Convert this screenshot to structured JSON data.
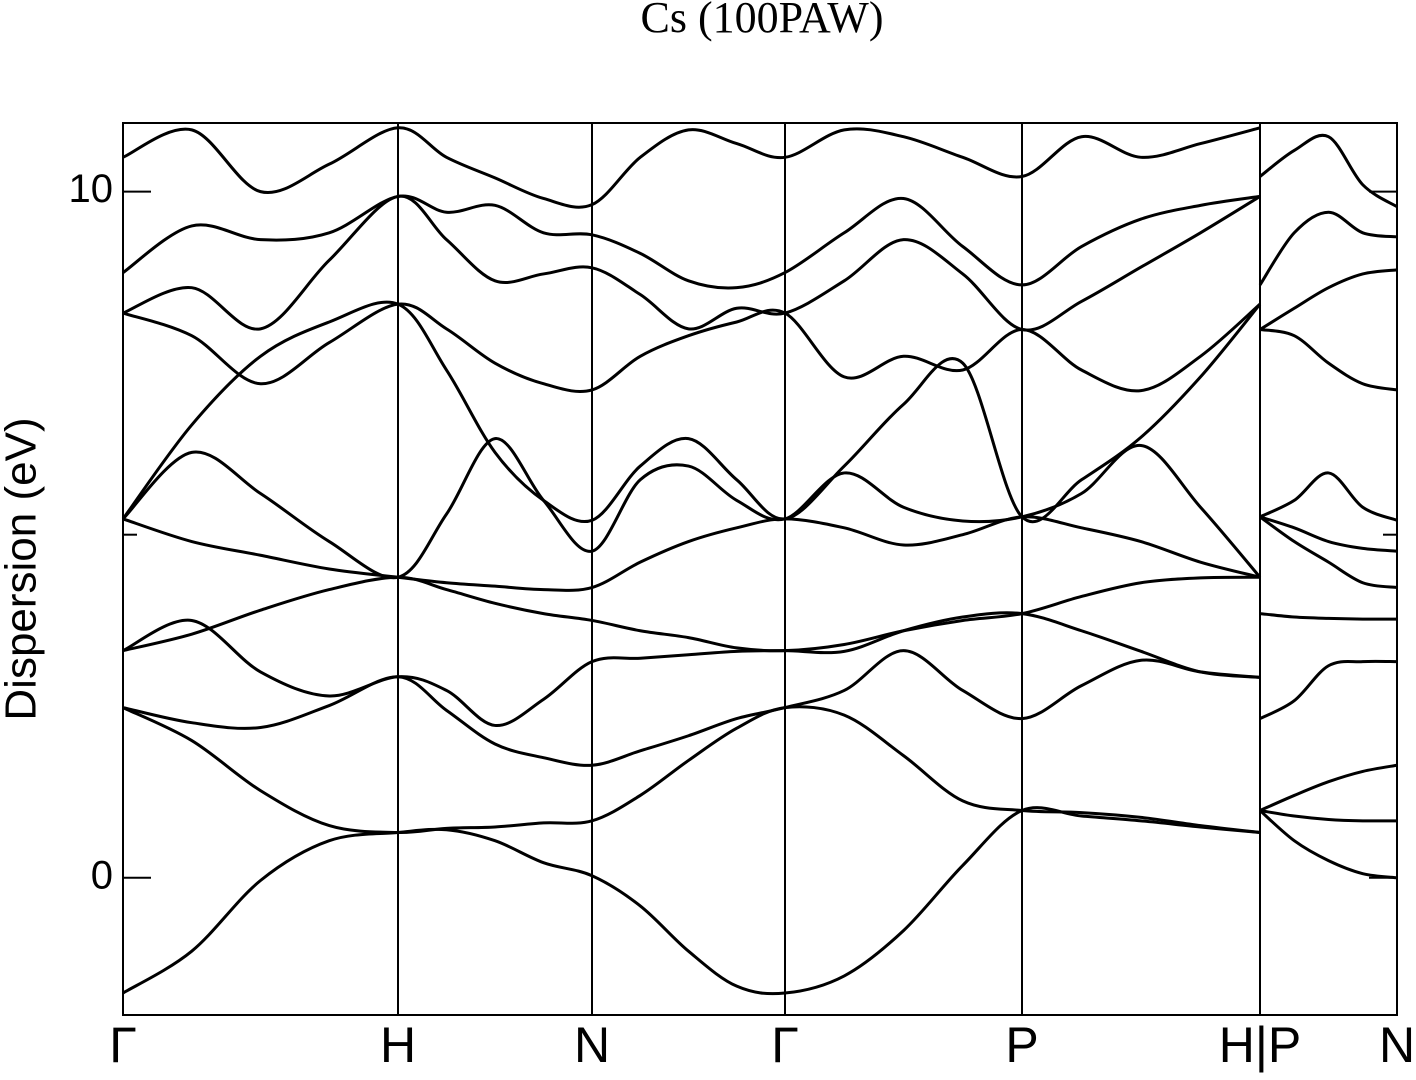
{
  "chart_data": {
    "type": "line",
    "title": "Cs (100PAW)",
    "y_label": "Dispersion (eV)",
    "color": "#000000",
    "xlim": [
      0,
      12.74
    ],
    "ylim": [
      -2,
      11
    ],
    "yticks": [
      0,
      10
    ],
    "yminor_ticks": [
      5
    ],
    "xticks": [
      {
        "value": 0,
        "label": "Γ"
      },
      {
        "value": 2.75,
        "label": "H"
      },
      {
        "value": 4.69,
        "label": "N"
      },
      {
        "value": 6.62,
        "label": "Γ"
      },
      {
        "value": 8.99,
        "label": "P"
      },
      {
        "value": 11.37,
        "label": "H|P"
      },
      {
        "value": 12.74,
        "label": "N"
      }
    ],
    "x": [
      0,
      0.6875,
      1.375,
      2.0625,
      2.75,
      3.235,
      3.72,
      4.205,
      4.69,
      5.1725,
      5.655,
      6.1375,
      6.62,
      7.2125,
      7.805,
      8.3975,
      8.99,
      9.585,
      10.18,
      10.775,
      11.37,
      11.37,
      11.7125,
      12.055,
      12.3975,
      12.74
    ],
    "series": [
      {
        "values": [
          -1.68,
          -1.07,
          -0.04,
          0.54,
          0.66,
          0.7,
          0.54,
          0.22,
          0.03,
          -0.41,
          -1.07,
          -1.58,
          -1.68,
          -1.43,
          -0.77,
          0.18,
          0.98,
          0.9,
          0.83,
          0.74,
          0.66,
          0.98,
          0.54,
          0.25,
          0.06,
          0.0
        ]
      },
      {
        "values": [
          2.48,
          2.0,
          1.27,
          0.76,
          0.66,
          0.72,
          0.74,
          0.8,
          0.83,
          1.2,
          1.71,
          2.18,
          2.48,
          2.37,
          1.78,
          1.12,
          0.98,
          0.95,
          0.88,
          0.76,
          0.66,
          0.98,
          0.9,
          0.85,
          0.83,
          0.83
        ]
      },
      {
        "values": [
          2.48,
          2.26,
          2.19,
          2.51,
          2.93,
          2.44,
          1.95,
          1.75,
          1.64,
          1.85,
          2.07,
          2.32,
          2.48,
          2.73,
          3.31,
          2.73,
          2.32,
          2.8,
          3.17,
          3.0,
          2.92,
          0.98,
          1.2,
          1.4,
          1.55,
          1.64
        ]
      },
      {
        "values": [
          3.31,
          3.75,
          3.0,
          2.65,
          2.93,
          2.73,
          2.22,
          2.6,
          3.15,
          3.2,
          3.25,
          3.3,
          3.31,
          3.3,
          3.6,
          3.8,
          3.85,
          3.6,
          3.3,
          3.0,
          2.92,
          2.32,
          2.58,
          3.09,
          3.15,
          3.15
        ]
      },
      {
        "values": [
          3.31,
          3.55,
          3.9,
          4.2,
          4.38,
          4.2,
          4.0,
          3.85,
          3.75,
          3.6,
          3.5,
          3.35,
          3.31,
          3.4,
          3.6,
          3.75,
          3.85,
          4.1,
          4.3,
          4.37,
          4.38,
          3.85,
          3.8,
          3.78,
          3.77,
          3.77
        ]
      },
      {
        "values": [
          5.23,
          4.9,
          4.7,
          4.5,
          4.38,
          4.3,
          4.25,
          4.2,
          4.23,
          4.6,
          4.9,
          5.1,
          5.23,
          5.1,
          4.85,
          5.0,
          5.26,
          5.1,
          4.9,
          4.6,
          4.38,
          5.26,
          4.9,
          4.6,
          4.3,
          4.23
        ]
      },
      {
        "values": [
          5.23,
          6.2,
          5.6,
          4.9,
          4.38,
          5.3,
          6.4,
          5.5,
          4.76,
          5.8,
          6.0,
          5.5,
          5.23,
          5.9,
          5.4,
          5.2,
          5.26,
          5.6,
          6.3,
          5.4,
          4.38,
          5.26,
          5.1,
          4.9,
          4.8,
          4.76
        ]
      },
      {
        "values": [
          5.23,
          6.6,
          7.6,
          8.1,
          8.36,
          7.4,
          6.2,
          5.5,
          5.21,
          6.0,
          6.4,
          5.8,
          5.23,
          6.0,
          6.9,
          7.5,
          5.26,
          5.8,
          6.42,
          7.3,
          8.36,
          5.26,
          5.5,
          5.9,
          5.4,
          5.21
        ]
      },
      {
        "values": [
          8.23,
          7.9,
          7.2,
          7.8,
          8.36,
          8.0,
          7.5,
          7.2,
          7.11,
          7.6,
          7.9,
          8.1,
          8.23,
          7.3,
          7.6,
          7.4,
          7.99,
          7.4,
          7.1,
          7.6,
          8.36,
          7.99,
          7.9,
          7.5,
          7.2,
          7.11
        ]
      },
      {
        "values": [
          8.23,
          8.6,
          8.0,
          9.0,
          9.93,
          9.3,
          8.7,
          8.8,
          8.89,
          8.5,
          8.0,
          8.3,
          8.23,
          8.7,
          9.3,
          8.8,
          7.99,
          8.4,
          8.9,
          9.4,
          9.93,
          7.99,
          8.3,
          8.6,
          8.8,
          8.86
        ]
      },
      {
        "values": [
          8.82,
          9.5,
          9.3,
          9.4,
          9.93,
          9.7,
          9.8,
          9.4,
          9.37,
          9.1,
          8.7,
          8.6,
          8.82,
          9.4,
          9.9,
          9.2,
          8.64,
          9.2,
          9.6,
          9.8,
          9.93,
          8.64,
          9.4,
          9.7,
          9.4,
          9.34
        ]
      },
      {
        "values": [
          10.5,
          10.9,
          10.0,
          10.4,
          10.93,
          10.5,
          10.2,
          9.9,
          9.81,
          10.5,
          10.9,
          10.7,
          10.5,
          10.9,
          10.8,
          10.5,
          10.22,
          10.8,
          10.5,
          10.7,
          10.93,
          10.22,
          10.6,
          10.8,
          10.1,
          9.78
        ]
      }
    ]
  }
}
